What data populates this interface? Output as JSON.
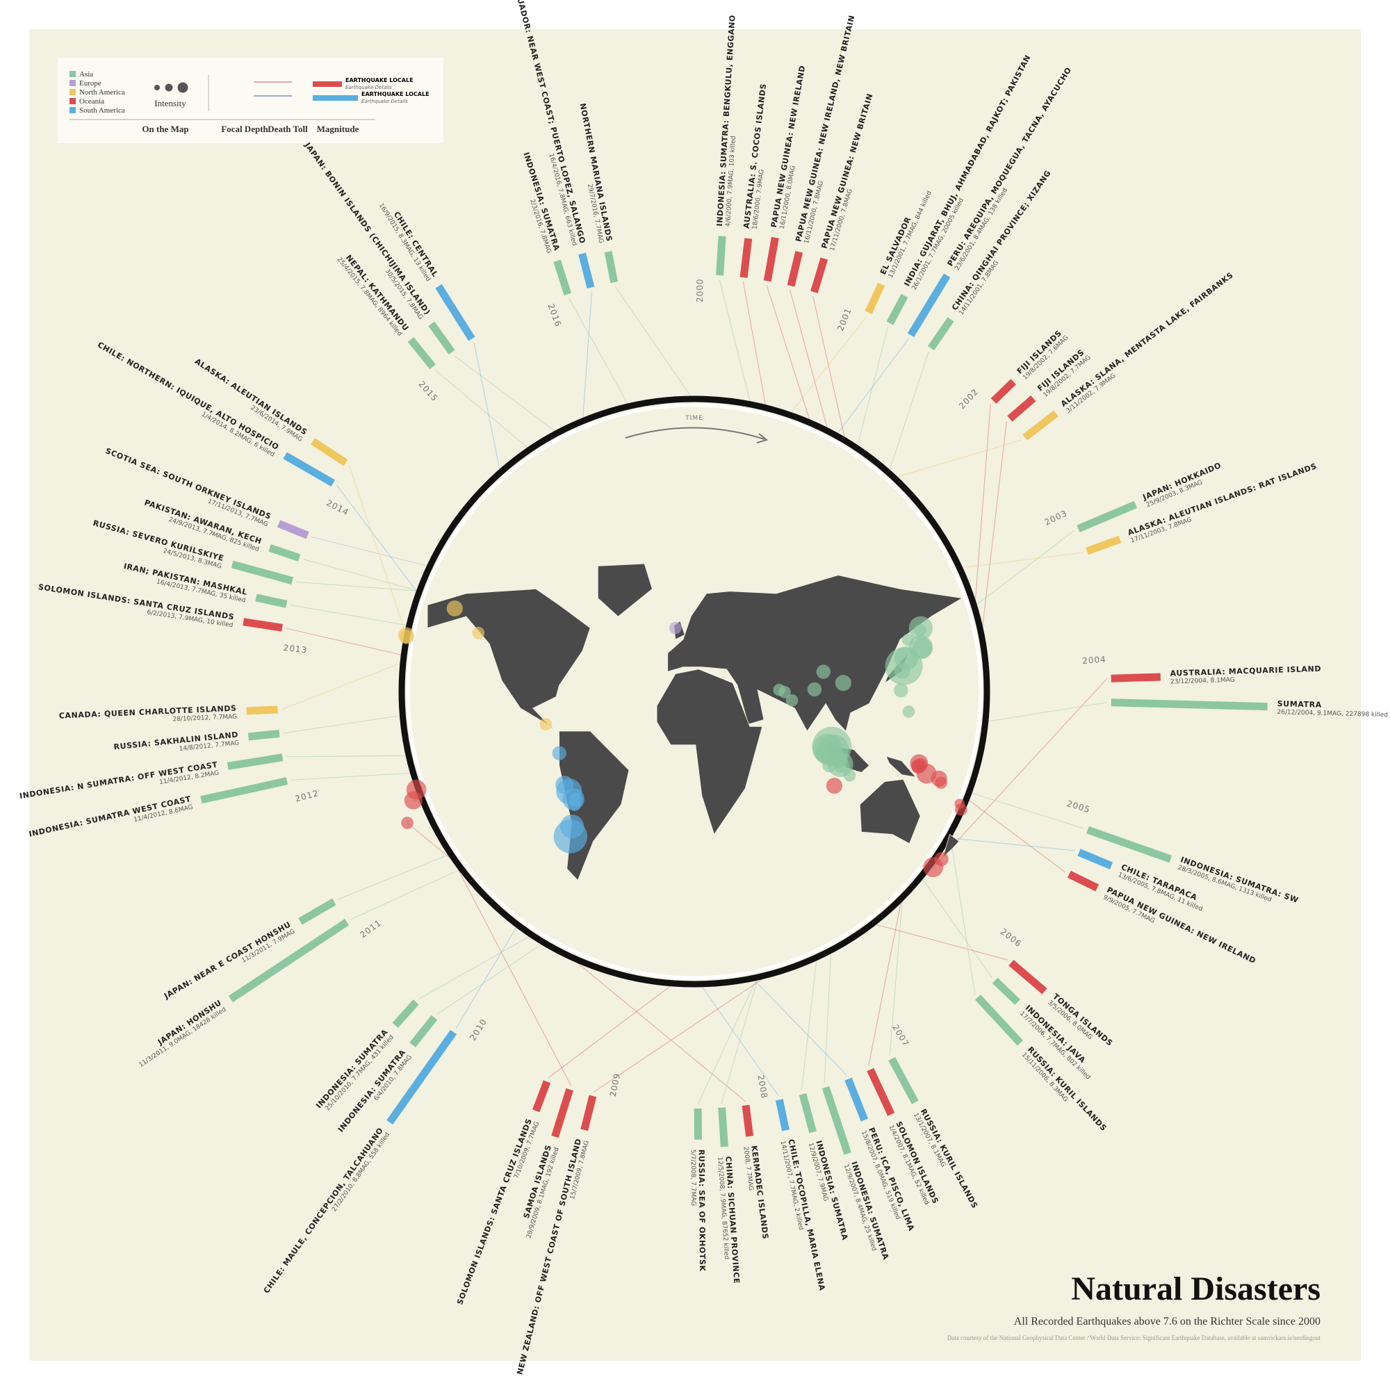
{
  "chart_data": {
    "type": "radial-bar",
    "title": "Natural Disasters",
    "subtitle": "All Recorded Earthquakes above 7.6 on the Richter Scale since 2000",
    "credit": "Data courtesy of the National Geophysical Data Center / World Data Service: Significant Earthquake Database, available at samvickars.is/nerdingout",
    "time_label": "TIME",
    "legend": {
      "regions": [
        {
          "name": "Asia",
          "color": "#8cc6a2"
        },
        {
          "name": "Europe",
          "color": "#b79fd3"
        },
        {
          "name": "North America",
          "color": "#efc75e"
        },
        {
          "name": "Oceania",
          "color": "#dc4d4f"
        },
        {
          "name": "South America",
          "color": "#5aaee0"
        }
      ],
      "intensity": "Intensity",
      "on_map": "On the Map",
      "focal_depth": "Focal Depth",
      "death_toll": "Death Toll",
      "magnitude": "Magnitude",
      "locale": "EARTHQUAKE LOCALE",
      "details": "Earthquake Details"
    },
    "years": [
      {
        "year": 2000,
        "events": [
          {
            "name": "INDONESIA: SUMATRA: BENGKULU, ENGGANO",
            "details": "4/6/2000, 7.9MAG, 103 killed",
            "region": "Asia",
            "magnitude": 7.9,
            "lon": 102.1,
            "lat": -4.7
          },
          {
            "name": "AUSTRALIA: S. COCOS ISLANDS",
            "details": "18/6/2000, 7.9MAG",
            "region": "Oceania",
            "magnitude": 7.9,
            "lon": 97.5,
            "lat": -13.8
          },
          {
            "name": "PAPUA NEW GUINEA: NEW IRELAND",
            "details": "16/11/2000, 8.0MAG",
            "region": "Oceania",
            "magnitude": 8.0,
            "lon": 152.2,
            "lat": -4.0
          },
          {
            "name": "PAPUA NEW GUINEA: NEW IRELAND, NEW BRITAIN",
            "details": "16/11/2000, 7.8MAG",
            "region": "Oceania",
            "magnitude": 7.8,
            "lon": 151.8,
            "lat": -5.2
          },
          {
            "name": "PAPUA NEW GUINEA: NEW BRITAIN",
            "details": "17/11/2000, 7.8MAG",
            "region": "Oceania",
            "magnitude": 7.8,
            "lon": 151.8,
            "lat": -5.5
          }
        ]
      },
      {
        "year": 2001,
        "events": [
          {
            "name": "EL SALVADOR",
            "details": "13/1/2001, 7.7MAG, 844 killed",
            "region": "North America",
            "magnitude": 7.7,
            "lon": -88.7,
            "lat": 13.0
          },
          {
            "name": "INDIA: GUJARAT, BHUJ, AHMADABAD, RAJKOT; PAKISTAN",
            "details": "26/1/2001, 7.7MAG, 20005 killed",
            "region": "Asia",
            "magnitude": 7.7,
            "lon": 70.2,
            "lat": 23.4
          },
          {
            "name": "PERU: AREQUIPA, MOQUEGUA, TACNA, AYACUCHO",
            "details": "23/6/2001, 8.4MAG, 138 killed",
            "region": "South America",
            "magnitude": 8.4,
            "lon": -73.6,
            "lat": -16.3
          },
          {
            "name": "CHINA: QINGHAI PROVINCE; XIZANG",
            "details": "14/11/2001, 7.8MAG",
            "region": "Asia",
            "magnitude": 7.8,
            "lon": 90.5,
            "lat": 35.9
          }
        ]
      },
      {
        "year": 2002,
        "events": [
          {
            "name": "FIJI ISLANDS",
            "details": "19/8/2002, 7.6MAG",
            "region": "Oceania",
            "magnitude": 7.6,
            "lon": 178.4,
            "lat": -21.7
          },
          {
            "name": "FIJI ISLANDS",
            "details": "19/8/2002, 7.7MAG",
            "region": "Oceania",
            "magnitude": 7.7,
            "lon": 179.3,
            "lat": -24.2
          },
          {
            "name": "ALASKA: SLANA, MENTASTA LAKE, FAIRBANKS",
            "details": "3/11/2002, 7.9MAG",
            "region": "North America",
            "magnitude": 7.9,
            "lon": -147.4,
            "lat": 63.5
          }
        ]
      },
      {
        "year": 2003,
        "events": [
          {
            "name": "JAPAN: HOKKAIDO",
            "details": "25/9/2003, 8.3MAG",
            "region": "Asia",
            "magnitude": 8.3,
            "lon": 143.9,
            "lat": 41.8
          },
          {
            "name": "ALASKA: ALEUTIAN ISLANDS: RAT ISLANDS",
            "details": "17/11/2003, 7.8MAG",
            "region": "North America",
            "magnitude": 7.8,
            "lon": -178.5,
            "lat": 51.1
          }
        ]
      },
      {
        "year": 2004,
        "events": [
          {
            "name": "AUSTRALIA: MACQUARIE ISLAND",
            "details": "23/12/2004, 8.1MAG",
            "region": "Oceania",
            "magnitude": 8.1,
            "lon": 161.3,
            "lat": -49.3
          },
          {
            "name": "SUMATRA",
            "details": "26/12/2004, 9.1MAG, 227898 killed",
            "region": "Asia",
            "magnitude": 9.1,
            "lon": 95.9,
            "lat": 3.3
          }
        ]
      },
      {
        "year": 2005,
        "events": [
          {
            "name": "INDONESIA: SUMATRA: SW",
            "details": "28/3/2005, 8.6MAG, 1313 killed",
            "region": "Asia",
            "magnitude": 8.6,
            "lon": 97.1,
            "lat": 2.1
          },
          {
            "name": "CHILE: TARAPACA",
            "details": "13/6/2005, 7.8MAG, 11 killed",
            "region": "South America",
            "magnitude": 7.8,
            "lon": -69.2,
            "lat": -19.9
          },
          {
            "name": "PAPUA NEW GUINEA: NEW IRELAND",
            "details": "9/9/2005, 7.7MAG",
            "region": "Oceania",
            "magnitude": 7.7,
            "lon": 153.5,
            "lat": -4.5
          }
        ]
      },
      {
        "year": 2006,
        "events": [
          {
            "name": "TONGA ISLANDS",
            "details": "3/5/2006, 8.0MAG",
            "region": "Oceania",
            "magnitude": 8.0,
            "lon": -174.1,
            "lat": -20.2
          },
          {
            "name": "INDONESIA: JAVA",
            "details": "17/7/2006, 7.7MAG, 802 killed",
            "region": "Asia",
            "magnitude": 7.7,
            "lon": 107.4,
            "lat": -9.3
          },
          {
            "name": "RUSSIA: KURIL ISLANDS",
            "details": "15/11/2006, 8.3MAG",
            "region": "Asia",
            "magnitude": 8.3,
            "lon": 153.3,
            "lat": 46.6
          }
        ]
      },
      {
        "year": 2007,
        "events": [
          {
            "name": "RUSSIA: KURIL ISLANDS",
            "details": "13/1/2007, 8.1MAG",
            "region": "Asia",
            "magnitude": 8.1,
            "lon": 154.5,
            "lat": 46.2
          },
          {
            "name": "SOLOMON ISLANDS",
            "details": "1/4/2007, 8.1MAG, 52 killed",
            "region": "Oceania",
            "magnitude": 8.1,
            "lon": 157.0,
            "lat": -8.5
          },
          {
            "name": "PERU: ICA, PISCO, LIMA",
            "details": "15/8/2007, 8.0MAG, 519 killed",
            "region": "South America",
            "magnitude": 8.0,
            "lon": -76.6,
            "lat": -13.4
          },
          {
            "name": "INDONESIA: SUMATRA",
            "details": "12/9/2007, 8.4MAG, 25 killed",
            "region": "Asia",
            "magnitude": 8.4,
            "lon": 101.4,
            "lat": -4.4
          },
          {
            "name": "INDONESIA: SUMATRA",
            "details": "12/9/2007, 7.9MAG",
            "region": "Asia",
            "magnitude": 7.9,
            "lon": 100.8,
            "lat": -2.6
          },
          {
            "name": "CHILE: TOCOPILLA, MARIA ELENA",
            "details": "14/11/2007, 7.7MAG, 2 killed",
            "region": "South America",
            "magnitude": 7.7,
            "lon": -70.0,
            "lat": -22.2
          }
        ]
      },
      {
        "year": 2008,
        "events": [
          {
            "name": "KERMADEC ISLANDS",
            "details": "2008, 7.7MAG",
            "region": "Oceania",
            "magnitude": 7.7,
            "lon": -178.0,
            "lat": -30.0
          },
          {
            "name": "CHINA: SICHUAN PROVINCE",
            "details": "12/5/2008, 7.9MAG, 87652 killed",
            "region": "Asia",
            "magnitude": 7.9,
            "lon": 103.3,
            "lat": 31.0
          },
          {
            "name": "RUSSIA: SEA OF OKHOTSK",
            "details": "5/7/2008, 7.7MAG",
            "region": "Asia",
            "magnitude": 7.7,
            "lon": 152.9,
            "lat": 54.0
          }
        ]
      },
      {
        "year": 2009,
        "events": [
          {
            "name": "NEW ZEALAND: OFF WEST COAST OF SOUTH ISLAND",
            "details": "15/7/2009, 7.8MAG",
            "region": "Oceania",
            "magnitude": 7.8,
            "lon": 166.6,
            "lat": -45.8
          },
          {
            "name": "SAMOA ISLANDS",
            "details": "29/9/2009, 8.1MAG, 192 killed",
            "region": "Oceania",
            "magnitude": 8.1,
            "lon": -172.1,
            "lat": -15.5
          },
          {
            "name": "SOLOMON ISLANDS: SANTA CRUZ ISLANDS",
            "details": "7/10/2009, 7.7MAG",
            "region": "Oceania",
            "magnitude": 7.7,
            "lon": 166.4,
            "lat": -12.5
          }
        ]
      },
      {
        "year": 2010,
        "events": [
          {
            "name": "CHILE: MAULE, CONCEPCION, TALCAHUANO",
            "details": "27/2/2010, 8.8MAG, 558 killed",
            "region": "South America",
            "magnitude": 8.8,
            "lon": -72.7,
            "lat": -35.9
          },
          {
            "name": "INDONESIA: SUMATRA",
            "details": "6/4/2010, 7.8MAG",
            "region": "Asia",
            "magnitude": 7.8,
            "lon": 97.1,
            "lat": 2.4
          },
          {
            "name": "INDONESIA: SUMATRA",
            "details": "25/10/2010, 7.7MAG, 431 killed",
            "region": "Asia",
            "magnitude": 7.7,
            "lon": 100.1,
            "lat": -3.5
          }
        ]
      },
      {
        "year": 2011,
        "events": [
          {
            "name": "JAPAN: HONSHU",
            "details": "11/3/2011, 9.0MAG, 18428 killed",
            "region": "Asia",
            "magnitude": 9.0,
            "lon": 142.4,
            "lat": 38.3
          },
          {
            "name": "JAPAN: NEAR E COAST HONSHU",
            "details": "11/3/2011, 7.9MAG",
            "region": "Asia",
            "magnitude": 7.9,
            "lon": 141.3,
            "lat": 36.3
          }
        ]
      },
      {
        "year": 2012,
        "events": [
          {
            "name": "INDONESIA: SUMATRA WEST COAST",
            "details": "11/4/2012, 8.6MAG",
            "region": "Asia",
            "magnitude": 8.6,
            "lon": 93.1,
            "lat": 2.3
          },
          {
            "name": "INDONESIA: N SUMATRA: OFF WEST COAST",
            "details": "11/4/2012, 8.2MAG",
            "region": "Asia",
            "magnitude": 8.2,
            "lon": 92.5,
            "lat": 0.8
          },
          {
            "name": "RUSSIA: SAKHALIN ISLAND",
            "details": "14/8/2012, 7.7MAG",
            "region": "Asia",
            "magnitude": 7.7,
            "lon": 145.1,
            "lat": 49.8
          },
          {
            "name": "CANADA: QUEEN CHARLOTTE ISLANDS",
            "details": "28/10/2012, 7.7MAG",
            "region": "North America",
            "magnitude": 7.7,
            "lon": -132.1,
            "lat": 52.8
          }
        ]
      },
      {
        "year": 2013,
        "events": [
          {
            "name": "SOLOMON ISLANDS: SANTA CRUZ ISLANDS",
            "details": "6/2/2013, 7.9MAG, 10 killed",
            "region": "Oceania",
            "magnitude": 7.9,
            "lon": 165.1,
            "lat": -10.7
          },
          {
            "name": "IRAN; PAKISTAN: MASHKAL",
            "details": "16/4/2013, 7.7MAG, 35 killed",
            "region": "Asia",
            "magnitude": 7.7,
            "lon": 62.0,
            "lat": 28.0
          },
          {
            "name": "RUSSIA: SEVERO KURILSKIYE",
            "details": "24/5/2013, 8.3MAG",
            "region": "Asia",
            "magnitude": 8.3,
            "lon": 153.3,
            "lat": 54.9
          },
          {
            "name": "PAKISTAN: AWARAN, KECH",
            "details": "24/9/2013, 7.7MAG, 825 killed",
            "region": "Asia",
            "magnitude": 7.7,
            "lon": 65.5,
            "lat": 27.0
          },
          {
            "name": "SCOTIA SEA: SOUTH ORKNEY ISLANDS",
            "details": "17/11/2013, 7.7MAG",
            "region": "Europe",
            "magnitude": 7.7,
            "lon": -5.0,
            "lat": 55.0
          }
        ]
      },
      {
        "year": 2014,
        "events": [
          {
            "name": "CHILE: NORTHERN: IQUIQUE, ALTO HOSPICIO",
            "details": "1/4/2014, 8.2MAG, 6 killed",
            "region": "South America",
            "magnitude": 8.2,
            "lon": -70.8,
            "lat": -19.6
          },
          {
            "name": "ALASKA: ALEUTIAN ISLANDS",
            "details": "23/6/2014, 7.9MAG",
            "region": "North America",
            "magnitude": 7.9,
            "lon": -178.7,
            "lat": 51.8
          }
        ]
      },
      {
        "year": 2015,
        "events": [
          {
            "name": "NEPAL: KATHMANDU",
            "details": "25/4/2015, 7.8MAG, 8964 killed",
            "region": "Asia",
            "magnitude": 7.8,
            "lon": 84.7,
            "lat": 28.2
          },
          {
            "name": "JAPAN: BONIN ISLANDS (CHICHIJIMA ISLAND)",
            "details": "30/5/2015, 7.8MAG",
            "region": "Asia",
            "magnitude": 7.8,
            "lon": 140.5,
            "lat": 27.8
          },
          {
            "name": "CHILE: CENTRAL",
            "details": "16/9/2015, 8.3MAG, 13 killed",
            "region": "South America",
            "magnitude": 8.3,
            "lon": -71.7,
            "lat": -31.6
          }
        ]
      },
      {
        "year": 2016,
        "events": [
          {
            "name": "INDONESIA: SUMATRA",
            "details": "2/3/2016, 7.8MAG",
            "region": "Asia",
            "magnitude": 7.8,
            "lon": 94.3,
            "lat": -4.9
          },
          {
            "name": "ECUADOR: NEAR WEST COAST; PUERTO LOPEZ, SALANGO",
            "details": "16/4/2016, 7.8MAG, 663 killed",
            "region": "South America",
            "magnitude": 7.8,
            "lon": -79.9,
            "lat": 0.4
          },
          {
            "name": "NORTHERN MARIANA ISLANDS",
            "details": "29/7/2016, 7.7MAG",
            "region": "Asia",
            "magnitude": 7.7,
            "lon": 145.5,
            "lat": 18.5
          }
        ]
      }
    ]
  }
}
